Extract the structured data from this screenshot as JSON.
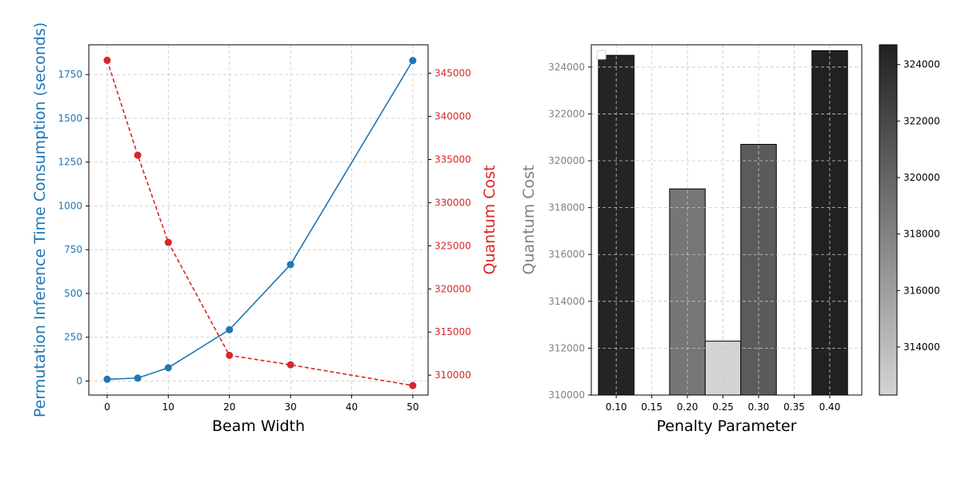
{
  "chart_data": [
    {
      "type": "line",
      "xlabel": "Beam Width",
      "ylabel_left": "Permutation Inference Time Consumption (seconds)",
      "ylabel_right": "Quantum Cost",
      "x": [
        0,
        5,
        10,
        20,
        30,
        50
      ],
      "series": [
        {
          "axis": "left",
          "color": "#1f77b4",
          "linestyle": "solid",
          "values": [
            10,
            17,
            76,
            293,
            665,
            1830
          ]
        },
        {
          "axis": "right",
          "color": "#d62728",
          "linestyle": "dashed",
          "values": [
            346500,
            335500,
            325400,
            312300,
            311200,
            308800
          ]
        }
      ],
      "xlim": [
        -3,
        52.5
      ],
      "ylim_left": [
        -80,
        1920
      ],
      "ylim_right": [
        307700,
        348300
      ],
      "xticks": [
        "0",
        "10",
        "20",
        "30",
        "40",
        "50"
      ],
      "yticks_left": [
        "0",
        "250",
        "500",
        "750",
        "1000",
        "1250",
        "1500",
        "1750"
      ],
      "yticks_right": [
        "310000",
        "315000",
        "320000",
        "325000",
        "330000",
        "335000",
        "340000",
        "345000"
      ],
      "grid": true
    },
    {
      "type": "bar",
      "xlabel": "Penalty Parameter",
      "ylabel": "Quantum Cost",
      "x": [
        0.1,
        0.2,
        0.25,
        0.3,
        0.4
      ],
      "values": [
        324500,
        318800,
        312300,
        320700,
        324700
      ],
      "bar_width": 0.05,
      "xlim": [
        0.065,
        0.445
      ],
      "ylim": [
        310000,
        324950
      ],
      "xticks": [
        "0.10",
        "0.15",
        "0.20",
        "0.25",
        "0.30",
        "0.35",
        "0.40"
      ],
      "yticks": [
        "310000",
        "312000",
        "314000",
        "316000",
        "318000",
        "320000",
        "322000",
        "324000"
      ],
      "colorbar": {
        "colormap": "gray_r",
        "range": [
          312300,
          324700
        ],
        "ticks": [
          "314000",
          "316000",
          "318000",
          "320000",
          "322000",
          "324000"
        ]
      },
      "legend": "top-left",
      "grid": true
    }
  ]
}
